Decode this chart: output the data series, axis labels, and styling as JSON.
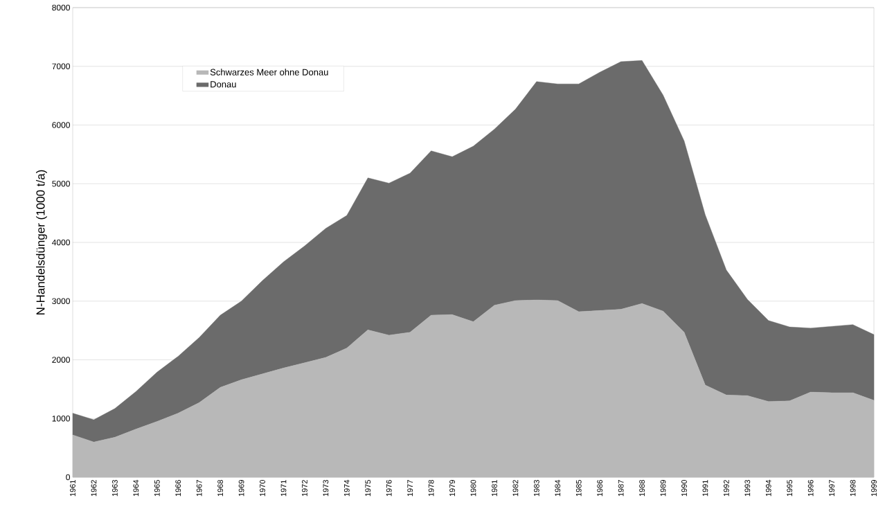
{
  "chart_data": {
    "type": "area",
    "stacked": true,
    "ylabel": "N-Handelsdünger (1000 t/a)",
    "categories": [
      "1961",
      "1962",
      "1963",
      "1964",
      "1965",
      "1966",
      "1967",
      "1968",
      "1969",
      "1970",
      "1971",
      "1972",
      "1973",
      "1974",
      "1975",
      "1976",
      "1977",
      "1978",
      "1979",
      "1980",
      "1981",
      "1982",
      "1983",
      "1984",
      "1985",
      "1986",
      "1987",
      "1988",
      "1989",
      "1990",
      "1991",
      "1992",
      "1993",
      "1994",
      "1995",
      "1996",
      "1997",
      "1998",
      "1999"
    ],
    "series": [
      {
        "name": "Schwarzes Meer ohne Donau",
        "color": "#b8b8b8",
        "values": [
          720,
          600,
          680,
          820,
          950,
          1090,
          1270,
          1530,
          1660,
          1760,
          1860,
          1950,
          2040,
          2200,
          2510,
          2420,
          2470,
          2760,
          2770,
          2650,
          2930,
          3010,
          3020,
          3010,
          2820,
          2840,
          2860,
          2960,
          2830,
          2470,
          1570,
          1400,
          1390,
          1290,
          1300,
          1450,
          1440,
          1440,
          1310
        ]
      },
      {
        "name": "Donau",
        "color": "#6b6b6b",
        "values": [
          370,
          380,
          490,
          640,
          840,
          970,
          1110,
          1230,
          1340,
          1590,
          1810,
          1990,
          2200,
          2260,
          2590,
          2590,
          2710,
          2800,
          2690,
          2990,
          3000,
          3260,
          3720,
          3690,
          3880,
          4060,
          4220,
          4140,
          3680,
          3260,
          2900,
          2130,
          1640,
          1380,
          1260,
          1090,
          1130,
          1160,
          1120
        ]
      }
    ],
    "ylim": [
      0,
      8000
    ],
    "yticks": [
      0,
      1000,
      2000,
      3000,
      4000,
      5000,
      6000,
      7000,
      8000
    ],
    "grid": "y",
    "legend": "top left"
  }
}
